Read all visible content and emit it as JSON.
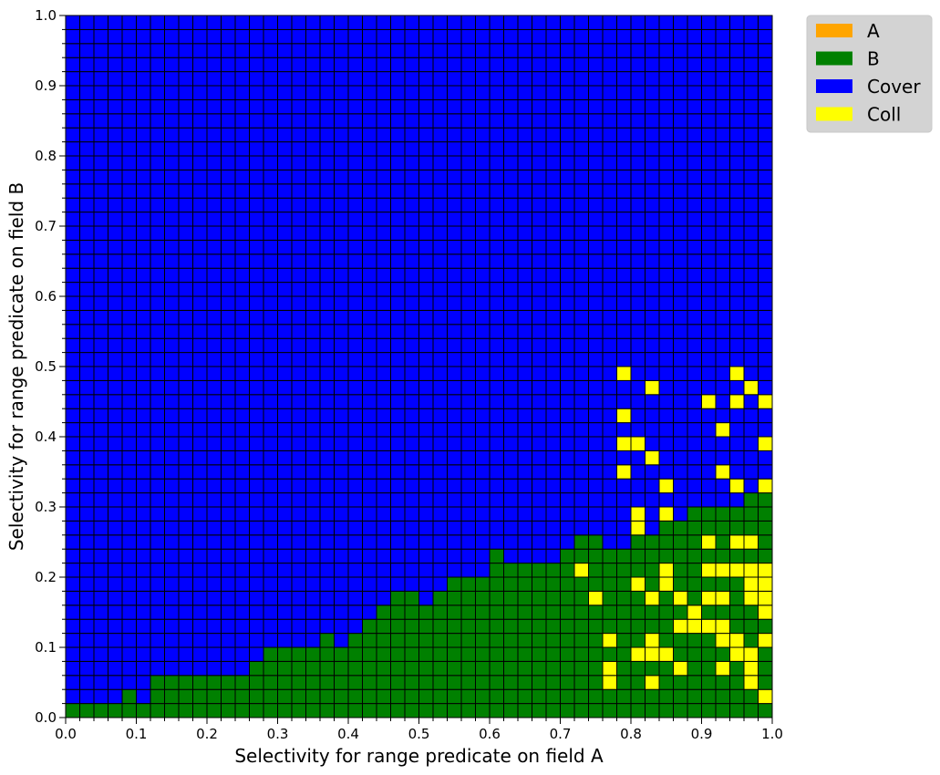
{
  "chart_data": {
    "type": "heatmap",
    "title": "",
    "xlabel": "Selectivity for range predicate on field A",
    "ylabel": "Selectivity for range predicate on field B",
    "xlim": [
      0,
      1
    ],
    "ylim": [
      0,
      1
    ],
    "grid_resolution": 50,
    "cell_size": 0.02,
    "x_ticks": [
      "0.0",
      "0.1",
      "0.2",
      "0.3",
      "0.4",
      "0.5",
      "0.6",
      "0.7",
      "0.8",
      "0.9",
      "1.0"
    ],
    "y_ticks": [
      "0.0",
      "0.1",
      "0.2",
      "0.3",
      "0.4",
      "0.5",
      "0.6",
      "0.7",
      "0.8",
      "0.9",
      "1.0"
    ],
    "legend": {
      "placement": "outside-top-right",
      "entries": [
        {
          "label": "A",
          "color": "#ffa500"
        },
        {
          "label": "B",
          "color": "#008000"
        },
        {
          "label": "Cover",
          "color": "#0000ff"
        },
        {
          "label": "Coll",
          "color": "#ffff00"
        }
      ]
    },
    "default_class": "Cover",
    "b_boundary_per_column": [
      1,
      1,
      1,
      1,
      2,
      1,
      3,
      3,
      3,
      3,
      3,
      3,
      3,
      4,
      5,
      5,
      5,
      5,
      6,
      5,
      6,
      7,
      8,
      9,
      9,
      8,
      9,
      10,
      10,
      10,
      12,
      11,
      11,
      11,
      11,
      12,
      13,
      13,
      12,
      12,
      13,
      13,
      14,
      14,
      15,
      15,
      15,
      15,
      16,
      16
    ],
    "coll_cells_col_row": [
      [
        38,
        5
      ],
      [
        39,
        24
      ],
      [
        39,
        21
      ],
      [
        39,
        19
      ],
      [
        39,
        17
      ],
      [
        40,
        4
      ],
      [
        40,
        19
      ],
      [
        40,
        9
      ],
      [
        40,
        13
      ],
      [
        40,
        14
      ],
      [
        41,
        8
      ],
      [
        41,
        4
      ],
      [
        41,
        5
      ],
      [
        41,
        2
      ],
      [
        41,
        18
      ],
      [
        41,
        23
      ],
      [
        42,
        14
      ],
      [
        42,
        9
      ],
      [
        42,
        10
      ],
      [
        43,
        6
      ],
      [
        43,
        8
      ],
      [
        43,
        3
      ],
      [
        45,
        6
      ],
      [
        45,
        8
      ],
      [
        45,
        10
      ],
      [
        46,
        5
      ],
      [
        46,
        3
      ],
      [
        46,
        10
      ],
      [
        46,
        17
      ],
      [
        47,
        24
      ],
      [
        48,
        23
      ],
      [
        48,
        8
      ],
      [
        48,
        9
      ],
      [
        48,
        12
      ],
      [
        48,
        2
      ],
      [
        49,
        9
      ],
      [
        49,
        22
      ],
      [
        49,
        5
      ],
      [
        49,
        1
      ],
      [
        49,
        10
      ],
      [
        49,
        7
      ],
      [
        36,
        10
      ],
      [
        37,
        8
      ],
      [
        38,
        3
      ],
      [
        38,
        2
      ],
      [
        42,
        4
      ],
      [
        42,
        16
      ],
      [
        44,
        6
      ],
      [
        44,
        7
      ],
      [
        47,
        12
      ],
      [
        47,
        5
      ],
      [
        47,
        16
      ],
      [
        47,
        4
      ],
      [
        47,
        22
      ],
      [
        47,
        10
      ],
      [
        48,
        4
      ],
      [
        48,
        3
      ],
      [
        48,
        10
      ],
      [
        49,
        19
      ],
      [
        49,
        16
      ],
      [
        49,
        8
      ],
      [
        45,
        12
      ],
      [
        45,
        22
      ],
      [
        46,
        20
      ],
      [
        46,
        6
      ],
      [
        46,
        8
      ]
    ]
  }
}
